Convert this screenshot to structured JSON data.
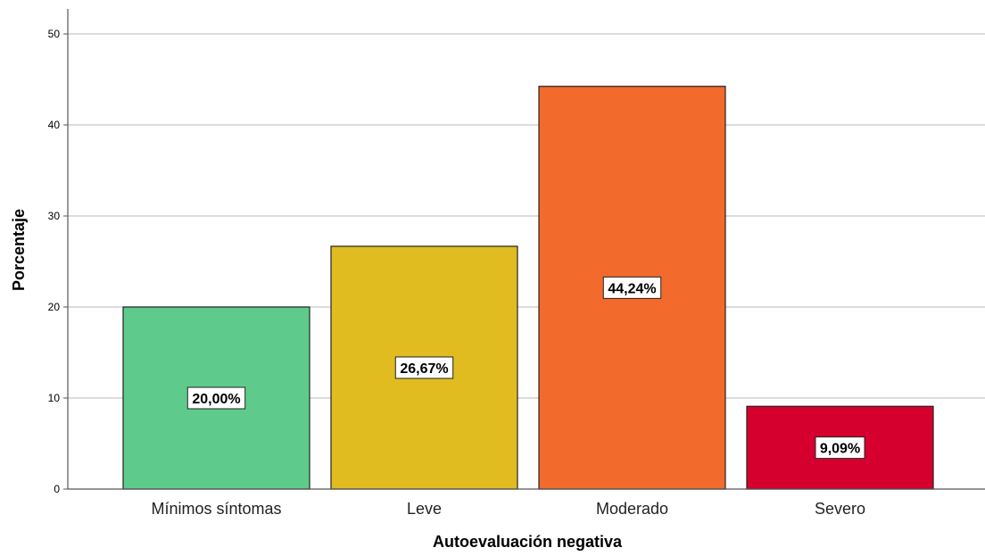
{
  "chart_data": {
    "type": "bar",
    "categories": [
      "Mínimos síntomas",
      "Leve",
      "Moderado",
      "Severo"
    ],
    "values": [
      20.0,
      26.67,
      44.24,
      9.09
    ],
    "data_labels": [
      "20,00%",
      "26,67%",
      "44,24%",
      "9,09%"
    ],
    "bar_colors": [
      "#5ecb8c",
      "#e0bc20",
      "#f26a2c",
      "#d6002e"
    ],
    "xlabel": "Autoevaluación negativa",
    "ylabel": "Porcentaje",
    "ylim": [
      0,
      52
    ],
    "yticks": [
      0,
      10,
      20,
      30,
      40,
      50
    ],
    "grid": true,
    "legend": "none"
  }
}
